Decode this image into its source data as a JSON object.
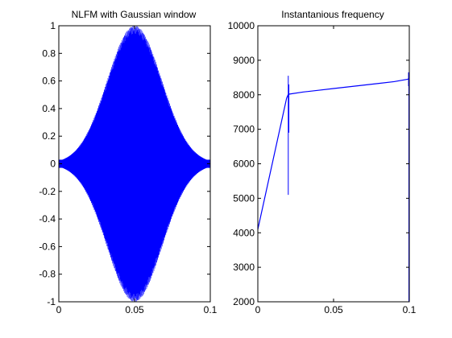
{
  "chart_data": [
    {
      "type": "line",
      "title": "NLFM with Gaussian window",
      "xlabel": "",
      "ylabel": "",
      "xlim": [
        0,
        0.1
      ],
      "ylim": [
        -1,
        1
      ],
      "xticks": [
        0,
        0.05,
        0.1
      ],
      "yticks": [
        -1,
        -0.8,
        -0.6,
        -0.4,
        -0.2,
        0,
        0.2,
        0.4,
        0.6,
        0.8,
        1
      ],
      "xtick_labels": [
        "0",
        "0.05",
        "0.1"
      ],
      "ytick_labels": [
        "-1",
        "-0.8",
        "-0.6",
        "-0.4",
        "-0.2",
        "0",
        "0.2",
        "0.4",
        "0.6",
        "0.8",
        "1"
      ],
      "grid": false,
      "color": "#0000ff",
      "envelope": {
        "shape": "gaussian",
        "center": 0.05,
        "peak": 1.0,
        "sigma": 0.018,
        "edge_amplitude": 0.03
      }
    },
    {
      "type": "line",
      "title": "Instantanious frequency",
      "xlabel": "",
      "ylabel": "",
      "xlim": [
        0,
        0.1
      ],
      "ylim": [
        2000,
        10000
      ],
      "xticks": [
        0,
        0.05,
        0.1
      ],
      "yticks": [
        2000,
        3000,
        4000,
        5000,
        6000,
        7000,
        8000,
        9000,
        10000
      ],
      "xtick_labels": [
        "0",
        "0.05",
        "0.1"
      ],
      "ytick_labels": [
        "2000",
        "3000",
        "4000",
        "5000",
        "6000",
        "7000",
        "8000",
        "9000",
        "10000"
      ],
      "grid": false,
      "color": "#0000ff",
      "series": [
        {
          "x": [
            0,
            0.005,
            0.01,
            0.015,
            0.019,
            0.02,
            0.021,
            0.03,
            0.04,
            0.05,
            0.06,
            0.07,
            0.08,
            0.09,
            0.099,
            0.1
          ],
          "y": [
            4100,
            5100,
            6100,
            7100,
            7900,
            8000,
            8020,
            8080,
            8130,
            8180,
            8230,
            8280,
            8330,
            8380,
            8450,
            8480
          ]
        }
      ],
      "spikes": [
        {
          "x": 0.0,
          "ymin": 3750,
          "ymax": 4350
        },
        {
          "x": 0.0201,
          "ymin": 5100,
          "ymax": 8550
        },
        {
          "x": 0.0205,
          "ymin": 6900,
          "ymax": 8300
        },
        {
          "x": 0.0995,
          "ymin": 8250,
          "ymax": 8650
        },
        {
          "x": 0.1,
          "ymin": 2000,
          "ymax": 8500
        }
      ]
    }
  ]
}
